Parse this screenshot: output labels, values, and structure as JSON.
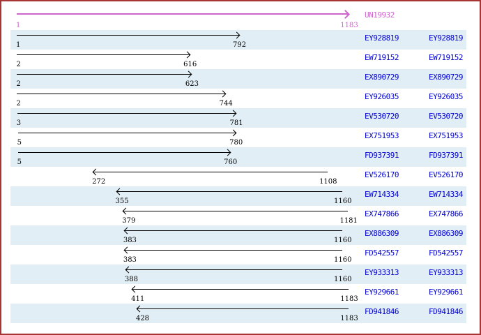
{
  "axis": {
    "min": 1,
    "max": 1183
  },
  "reference": {
    "id": "UN19932",
    "start": 1,
    "end": 1183,
    "direction": "right"
  },
  "alignments": [
    {
      "accession": "EY928819",
      "start": 1,
      "end": 792,
      "direction": "right"
    },
    {
      "accession": "EW719152",
      "start": 2,
      "end": 616,
      "direction": "right"
    },
    {
      "accession": "EX890729",
      "start": 2,
      "end": 623,
      "direction": "right"
    },
    {
      "accession": "EY926035",
      "start": 2,
      "end": 744,
      "direction": "right"
    },
    {
      "accession": "EV530720",
      "start": 3,
      "end": 781,
      "direction": "right"
    },
    {
      "accession": "EX751953",
      "start": 5,
      "end": 780,
      "direction": "right"
    },
    {
      "accession": "FD937391",
      "start": 5,
      "end": 760,
      "direction": "right"
    },
    {
      "accession": "EV526170",
      "start": 272,
      "end": 1108,
      "direction": "left"
    },
    {
      "accession": "EW714334",
      "start": 355,
      "end": 1160,
      "direction": "left"
    },
    {
      "accession": "EX747866",
      "start": 379,
      "end": 1181,
      "direction": "left"
    },
    {
      "accession": "EX886309",
      "start": 383,
      "end": 1160,
      "direction": "left"
    },
    {
      "accession": "FD542557",
      "start": 383,
      "end": 1160,
      "direction": "left"
    },
    {
      "accession": "EY933313",
      "start": 388,
      "end": 1160,
      "direction": "left"
    },
    {
      "accession": "EY929661",
      "start": 411,
      "end": 1183,
      "direction": "left"
    },
    {
      "accession": "FD941846",
      "start": 428,
      "end": 1183,
      "direction": "left"
    }
  ],
  "colors": {
    "reference_accent": "#cc66cc",
    "accession_link": "#0000cc",
    "row_band": "#e1eef5",
    "arrow": "#000000",
    "page_border": "#a83535"
  }
}
